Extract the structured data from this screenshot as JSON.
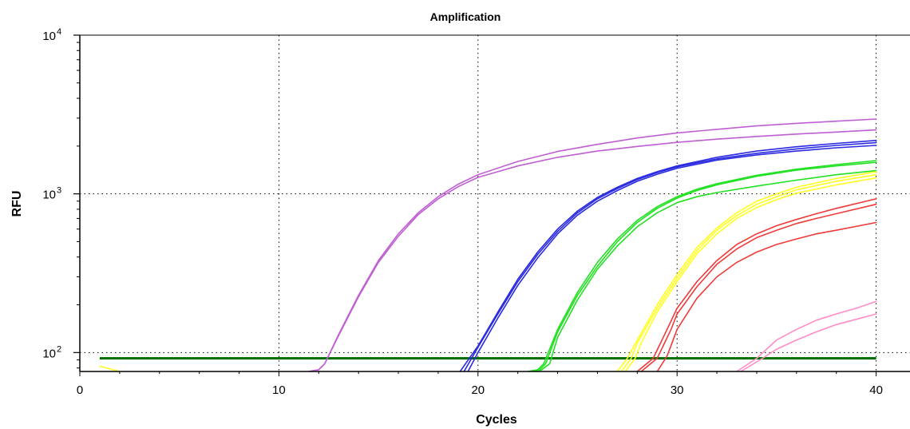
{
  "chart_data": {
    "type": "line",
    "title": "Amplification",
    "xlabel": "Cycles",
    "ylabel": "RFU",
    "x_ticks": [
      "0",
      "10",
      "20",
      "30",
      "40"
    ],
    "y_ticks": [
      {
        "base": "10",
        "exp": "2",
        "value": 100
      },
      {
        "base": "10",
        "exp": "3",
        "value": 1000
      },
      {
        "base": "10",
        "exp": "4",
        "value": 10000
      }
    ],
    "xlim": [
      0,
      41.7
    ],
    "ylim": [
      76,
      10000
    ],
    "y_scale": "log",
    "grid": true,
    "threshold": {
      "y": 92,
      "x_range": [
        1,
        40
      ],
      "color": "#007000"
    },
    "series": [
      {
        "color": "#bf5fd2",
        "points": [
          [
            11.5,
            76
          ],
          [
            12,
            78
          ],
          [
            12.3,
            85
          ],
          [
            13,
            130
          ],
          [
            14,
            230
          ],
          [
            15,
            380
          ],
          [
            16,
            560
          ],
          [
            17,
            760
          ],
          [
            18,
            960
          ],
          [
            19,
            1150
          ],
          [
            20,
            1320
          ],
          [
            22,
            1600
          ],
          [
            24,
            1850
          ],
          [
            26,
            2050
          ],
          [
            28,
            2250
          ],
          [
            30,
            2420
          ],
          [
            32,
            2550
          ],
          [
            34,
            2680
          ],
          [
            36,
            2780
          ],
          [
            38,
            2870
          ],
          [
            40,
            2960
          ]
        ]
      },
      {
        "color": "#bf5fd2",
        "points": [
          [
            11.5,
            76
          ],
          [
            12,
            78
          ],
          [
            12.3,
            85
          ],
          [
            13,
            128
          ],
          [
            14,
            225
          ],
          [
            15,
            370
          ],
          [
            16,
            540
          ],
          [
            17,
            740
          ],
          [
            18,
            930
          ],
          [
            19,
            1110
          ],
          [
            20,
            1270
          ],
          [
            22,
            1500
          ],
          [
            24,
            1700
          ],
          [
            26,
            1860
          ],
          [
            28,
            1990
          ],
          [
            30,
            2110
          ],
          [
            32,
            2210
          ],
          [
            34,
            2300
          ],
          [
            36,
            2380
          ],
          [
            38,
            2450
          ],
          [
            40,
            2530
          ]
        ]
      },
      {
        "color": "#2a2ae0",
        "points": [
          [
            19.1,
            76
          ],
          [
            20,
            110
          ],
          [
            21,
            180
          ],
          [
            22,
            290
          ],
          [
            23,
            430
          ],
          [
            24,
            600
          ],
          [
            25,
            780
          ],
          [
            26,
            950
          ],
          [
            27,
            1100
          ],
          [
            28,
            1250
          ],
          [
            29,
            1380
          ],
          [
            30,
            1500
          ],
          [
            32,
            1700
          ],
          [
            34,
            1860
          ],
          [
            36,
            1980
          ],
          [
            38,
            2080
          ],
          [
            40,
            2170
          ]
        ]
      },
      {
        "color": "#2a2ae0",
        "points": [
          [
            19.3,
            76
          ],
          [
            20,
            108
          ],
          [
            21,
            175
          ],
          [
            22,
            280
          ],
          [
            23,
            415
          ],
          [
            24,
            580
          ],
          [
            25,
            760
          ],
          [
            26,
            930
          ],
          [
            27,
            1080
          ],
          [
            28,
            1230
          ],
          [
            29,
            1360
          ],
          [
            30,
            1480
          ],
          [
            32,
            1660
          ],
          [
            34,
            1800
          ],
          [
            36,
            1920
          ],
          [
            38,
            2020
          ],
          [
            40,
            2100
          ]
        ]
      },
      {
        "color": "#2a2ae0",
        "points": [
          [
            19.5,
            76
          ],
          [
            20,
            100
          ],
          [
            21,
            165
          ],
          [
            22,
            265
          ],
          [
            23,
            395
          ],
          [
            24,
            560
          ],
          [
            25,
            735
          ],
          [
            26,
            900
          ],
          [
            27,
            1050
          ],
          [
            28,
            1200
          ],
          [
            29,
            1330
          ],
          [
            30,
            1450
          ],
          [
            32,
            1630
          ],
          [
            34,
            1760
          ],
          [
            36,
            1860
          ],
          [
            38,
            1950
          ],
          [
            40,
            2020
          ]
        ]
      },
      {
        "color": "#22e022",
        "points": [
          [
            22.5,
            76
          ],
          [
            23,
            78
          ],
          [
            23.3,
            85
          ],
          [
            24,
            140
          ],
          [
            25,
            240
          ],
          [
            26,
            370
          ],
          [
            27,
            520
          ],
          [
            28,
            680
          ],
          [
            29,
            830
          ],
          [
            30,
            960
          ],
          [
            31,
            1070
          ],
          [
            32,
            1160
          ],
          [
            34,
            1310
          ],
          [
            36,
            1430
          ],
          [
            38,
            1530
          ],
          [
            40,
            1620
          ]
        ]
      },
      {
        "color": "#22e022",
        "points": [
          [
            22.6,
            76
          ],
          [
            23.1,
            78
          ],
          [
            23.4,
            85
          ],
          [
            24,
            135
          ],
          [
            25,
            230
          ],
          [
            26,
            350
          ],
          [
            27,
            500
          ],
          [
            28,
            660
          ],
          [
            29,
            810
          ],
          [
            30,
            940
          ],
          [
            31,
            1050
          ],
          [
            32,
            1140
          ],
          [
            34,
            1290
          ],
          [
            36,
            1410
          ],
          [
            38,
            1500
          ],
          [
            40,
            1580
          ]
        ]
      },
      {
        "color": "#22e022",
        "points": [
          [
            22.8,
            76
          ],
          [
            23.2,
            78
          ],
          [
            23.6,
            85
          ],
          [
            24,
            125
          ],
          [
            25,
            215
          ],
          [
            26,
            335
          ],
          [
            27,
            470
          ],
          [
            28,
            620
          ],
          [
            29,
            760
          ],
          [
            30,
            880
          ],
          [
            31,
            960
          ],
          [
            32,
            1020
          ],
          [
            34,
            1120
          ],
          [
            36,
            1220
          ],
          [
            38,
            1320
          ],
          [
            40,
            1400
          ]
        ]
      },
      {
        "color": "#ffff22",
        "points": [
          [
            1,
            82
          ],
          [
            2,
            76
          ]
        ]
      },
      {
        "color": "#ffff22",
        "points": [
          [
            27,
            76
          ],
          [
            27.5,
            92
          ],
          [
            28,
            120
          ],
          [
            29,
            200
          ],
          [
            30,
            310
          ],
          [
            31,
            460
          ],
          [
            32,
            610
          ],
          [
            33,
            760
          ],
          [
            34,
            900
          ],
          [
            35,
            1000
          ],
          [
            36,
            1100
          ],
          [
            38,
            1250
          ],
          [
            40,
            1380
          ]
        ]
      },
      {
        "color": "#ffff22",
        "points": [
          [
            27.2,
            76
          ],
          [
            27.7,
            92
          ],
          [
            28,
            115
          ],
          [
            29,
            190
          ],
          [
            30,
            295
          ],
          [
            31,
            440
          ],
          [
            32,
            590
          ],
          [
            33,
            730
          ],
          [
            34,
            860
          ],
          [
            35,
            960
          ],
          [
            36,
            1060
          ],
          [
            38,
            1200
          ],
          [
            40,
            1320
          ]
        ]
      },
      {
        "color": "#ffff22",
        "points": [
          [
            27.4,
            76
          ],
          [
            27.9,
            92
          ],
          [
            28.2,
            115
          ],
          [
            29,
            180
          ],
          [
            30,
            280
          ],
          [
            31,
            420
          ],
          [
            32,
            560
          ],
          [
            33,
            700
          ],
          [
            34,
            820
          ],
          [
            35,
            920
          ],
          [
            36,
            1010
          ],
          [
            38,
            1140
          ],
          [
            40,
            1260
          ]
        ]
      },
      {
        "color": "#f03a3a",
        "points": [
          [
            28,
            76
          ],
          [
            28.8,
            92
          ],
          [
            29.5,
            140
          ],
          [
            30,
            190
          ],
          [
            31,
            280
          ],
          [
            32,
            380
          ],
          [
            33,
            480
          ],
          [
            34,
            560
          ],
          [
            35,
            630
          ],
          [
            36,
            690
          ],
          [
            37,
            750
          ],
          [
            38,
            810
          ],
          [
            40,
            930
          ]
        ]
      },
      {
        "color": "#f03a3a",
        "points": [
          [
            28.2,
            76
          ],
          [
            29,
            92
          ],
          [
            29.7,
            140
          ],
          [
            30,
            175
          ],
          [
            31,
            260
          ],
          [
            32,
            360
          ],
          [
            33,
            450
          ],
          [
            34,
            530
          ],
          [
            35,
            590
          ],
          [
            36,
            650
          ],
          [
            37,
            700
          ],
          [
            38,
            750
          ],
          [
            40,
            860
          ]
        ]
      },
      {
        "color": "#f03a3a",
        "points": [
          [
            29,
            76
          ],
          [
            29.5,
            95
          ],
          [
            30,
            140
          ],
          [
            31,
            220
          ],
          [
            32,
            300
          ],
          [
            33,
            370
          ],
          [
            34,
            430
          ],
          [
            35,
            480
          ],
          [
            36,
            520
          ],
          [
            37,
            560
          ],
          [
            38,
            590
          ],
          [
            40,
            660
          ]
        ]
      },
      {
        "color": "#ff8cc8",
        "points": [
          [
            33,
            76
          ],
          [
            34,
            92
          ],
          [
            35,
            120
          ],
          [
            36,
            140
          ],
          [
            37,
            160
          ],
          [
            38,
            175
          ],
          [
            39,
            190
          ],
          [
            40,
            210
          ]
        ]
      },
      {
        "color": "#ff8cc8",
        "points": [
          [
            33.2,
            76
          ],
          [
            34.3,
            92
          ],
          [
            35,
            105
          ],
          [
            36,
            120
          ],
          [
            37,
            135
          ],
          [
            38,
            150
          ],
          [
            39,
            162
          ],
          [
            40,
            175
          ]
        ]
      }
    ]
  }
}
